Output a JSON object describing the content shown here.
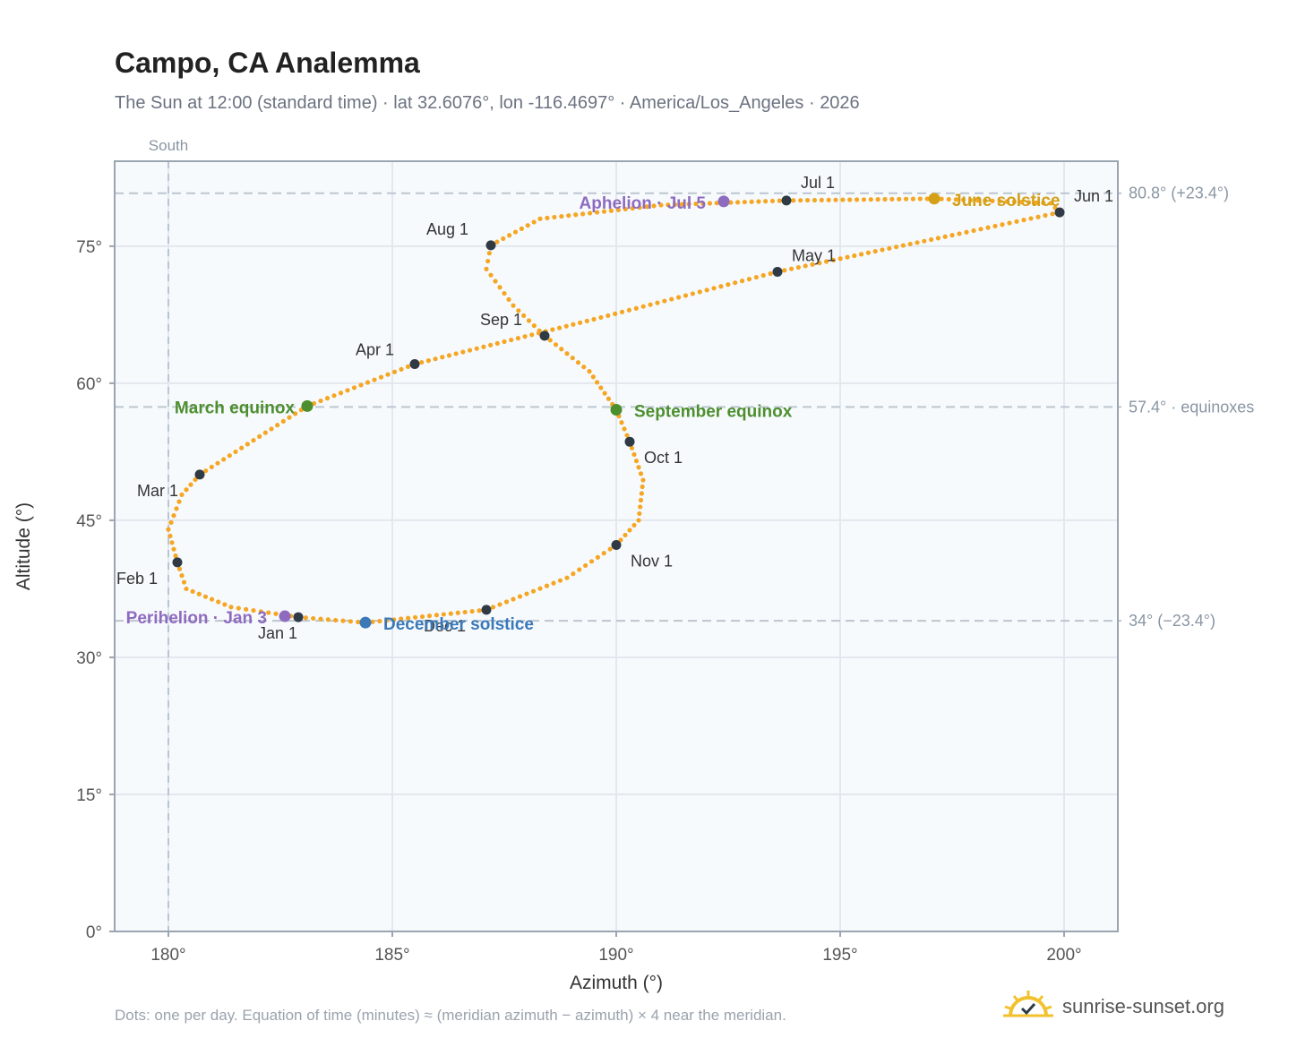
{
  "header": {
    "title": "Campo, CA Analemma",
    "subtitle": "The Sun at 12:00 (standard time) · lat 32.6076°, lon -116.4697° · America/Los_Angeles · 2026"
  },
  "footer": {
    "note": "Dots: one per day. Equation of time (minutes) ≈ (meridian azimuth − azimuth) × 4 near the meridian.",
    "brand": "sunrise-sunset.org"
  },
  "colors": {
    "path": "#f5a623",
    "month_marker": "#2f3a45",
    "equinox": "#4d8f2f",
    "june_solstice": "#d4a017",
    "december_solstice": "#3a78b8",
    "perihelion_aphelion": "#8e6bbf",
    "plot_bg": "#f7fafd"
  },
  "chart_data": {
    "type": "scatter",
    "title": "Campo, CA Analemma",
    "xlabel": "Azimuth (°)",
    "ylabel": "Altitude (°)",
    "xlim": [
      178.8,
      201.2
    ],
    "ylim": [
      0,
      84.3
    ],
    "x_ticks": [
      180,
      185,
      190,
      195,
      200
    ],
    "x_tick_labels": [
      "180°",
      "185°",
      "190°",
      "195°",
      "200°"
    ],
    "y_ticks": [
      0,
      15,
      30,
      45,
      60,
      75
    ],
    "y_tick_labels": [
      "0°",
      "15°",
      "30°",
      "45°",
      "60°",
      "75°"
    ],
    "grid": true,
    "meridian": {
      "azimuth": 180,
      "label": "South"
    },
    "reference_lines": [
      {
        "altitude": 80.8,
        "label": "80.8° (+23.4°)"
      },
      {
        "altitude": 57.4,
        "label": "57.4° · equinoxes"
      },
      {
        "altitude": 34.0,
        "label": "34° (−23.4°)"
      }
    ],
    "month_markers": [
      {
        "label": "Jan 1",
        "azimuth": 182.9,
        "altitude": 34.4
      },
      {
        "label": "Feb 1",
        "azimuth": 180.2,
        "altitude": 40.4
      },
      {
        "label": "Mar 1",
        "azimuth": 180.7,
        "altitude": 50.0
      },
      {
        "label": "Apr 1",
        "azimuth": 185.5,
        "altitude": 62.1
      },
      {
        "label": "May 1",
        "azimuth": 193.6,
        "altitude": 72.2
      },
      {
        "label": "Jun 1",
        "azimuth": 199.9,
        "altitude": 78.7
      },
      {
        "label": "Jul 1",
        "azimuth": 193.8,
        "altitude": 80.0
      },
      {
        "label": "Aug 1",
        "azimuth": 187.2,
        "altitude": 75.1
      },
      {
        "label": "Sep 1",
        "azimuth": 188.4,
        "altitude": 65.2
      },
      {
        "label": "Oct 1",
        "azimuth": 190.3,
        "altitude": 53.6
      },
      {
        "label": "Nov 1",
        "azimuth": 190.0,
        "altitude": 42.3
      },
      {
        "label": "Dec 1",
        "azimuth": 187.1,
        "altitude": 35.2
      }
    ],
    "special_events": [
      {
        "label": "March equinox",
        "azimuth": 183.1,
        "altitude": 57.5,
        "kind": "equinox"
      },
      {
        "label": "September equinox",
        "azimuth": 190.0,
        "altitude": 57.1,
        "kind": "equinox"
      },
      {
        "label": "June solstice",
        "azimuth": 197.1,
        "altitude": 80.2,
        "kind": "june_solstice"
      },
      {
        "label": "December solstice",
        "azimuth": 184.4,
        "altitude": 33.8,
        "kind": "december_solstice"
      },
      {
        "label": "Perihelion · Jan 3",
        "azimuth": 182.6,
        "altitude": 34.5,
        "kind": "perihelion_aphelion"
      },
      {
        "label": "Aphelion · Jul 5",
        "azimuth": 192.4,
        "altitude": 79.9,
        "kind": "perihelion_aphelion"
      }
    ],
    "path": [
      [
        182.9,
        34.4
      ],
      [
        181.4,
        35.5
      ],
      [
        180.4,
        37.5
      ],
      [
        180.2,
        40.4
      ],
      [
        180.0,
        44.0
      ],
      [
        180.3,
        47.8
      ],
      [
        180.7,
        50.0
      ],
      [
        183.1,
        57.5
      ],
      [
        185.5,
        62.1
      ],
      [
        189.5,
        67.0
      ],
      [
        193.6,
        72.2
      ],
      [
        197.5,
        76.2
      ],
      [
        199.9,
        78.7
      ],
      [
        199.7,
        79.7
      ],
      [
        197.1,
        80.2
      ],
      [
        193.8,
        80.0
      ],
      [
        191.0,
        79.5
      ],
      [
        188.3,
        78.0
      ],
      [
        187.2,
        75.1
      ],
      [
        187.1,
        72.5
      ],
      [
        187.7,
        68.5
      ],
      [
        188.4,
        65.2
      ],
      [
        189.4,
        61.3
      ],
      [
        190.0,
        57.1
      ],
      [
        190.3,
        53.6
      ],
      [
        190.6,
        49.4
      ],
      [
        190.5,
        45.0
      ],
      [
        190.0,
        42.3
      ],
      [
        188.9,
        38.7
      ],
      [
        187.1,
        35.2
      ],
      [
        184.4,
        33.8
      ],
      [
        182.9,
        34.4
      ]
    ]
  }
}
